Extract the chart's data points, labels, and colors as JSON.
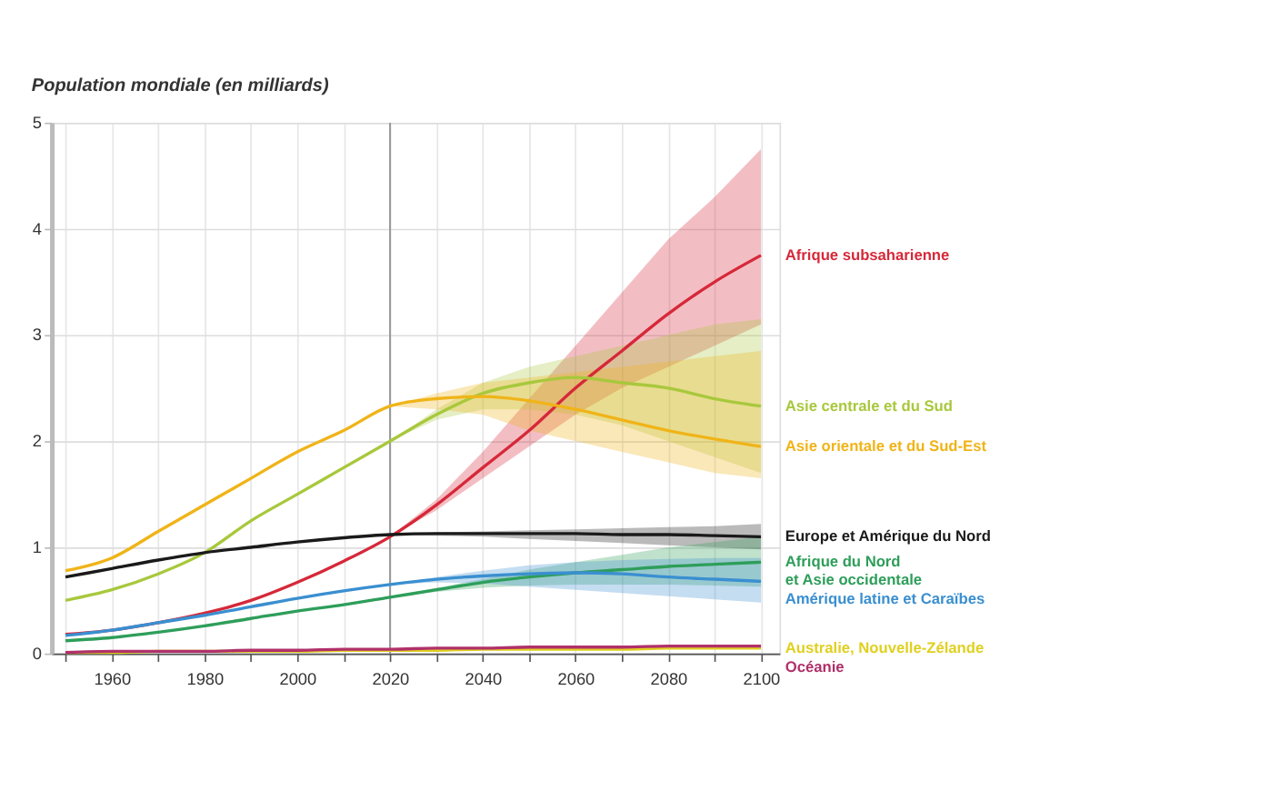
{
  "chart_data": {
    "type": "line",
    "title": "Population mondiale (en milliards)",
    "x": [
      1950,
      1960,
      1970,
      1980,
      1990,
      2000,
      2010,
      2020,
      2030,
      2040,
      2050,
      2060,
      2070,
      2080,
      2090,
      2100
    ],
    "xlim": [
      1947,
      2104
    ],
    "xticks": [
      {
        "value": 1950,
        "label": null
      },
      1960,
      {
        "value": 1970,
        "label": null
      },
      1980,
      {
        "value": 1990,
        "label": null
      },
      2000,
      {
        "value": 2010,
        "label": null
      },
      2020,
      {
        "value": 2030,
        "label": null
      },
      2040,
      {
        "value": 2050,
        "label": null
      },
      2060,
      {
        "value": 2070,
        "label": null
      },
      2080,
      {
        "value": 2090,
        "label": null
      },
      2100
    ],
    "ylim": [
      0,
      5
    ],
    "yticks": [
      0,
      1,
      2,
      3,
      4,
      5
    ],
    "grid": true,
    "legend": false,
    "ref_lines": [
      {
        "axis": "x",
        "value": 2020,
        "color": "#999999"
      }
    ],
    "series": [
      {
        "name": "Afrique subsaharienne",
        "color": "#d62839",
        "values": [
          0.18,
          0.22,
          0.29,
          0.38,
          0.5,
          0.67,
          0.87,
          1.1,
          1.4,
          1.75,
          2.1,
          2.5,
          2.85,
          3.2,
          3.5,
          3.75
        ],
        "lower": [
          null,
          null,
          null,
          null,
          null,
          null,
          null,
          1.1,
          1.35,
          1.65,
          1.95,
          2.25,
          2.5,
          2.7,
          2.9,
          3.1
        ],
        "upper": [
          null,
          null,
          null,
          null,
          null,
          null,
          null,
          1.1,
          1.45,
          1.9,
          2.4,
          2.9,
          3.4,
          3.9,
          4.3,
          4.75
        ]
      },
      {
        "name": "Asie centrale et du Sud",
        "color": "#a8c83c",
        "values": [
          0.5,
          0.6,
          0.75,
          0.95,
          1.25,
          1.5,
          1.75,
          2.0,
          2.25,
          2.45,
          2.55,
          2.6,
          2.55,
          2.5,
          2.4,
          2.33
        ],
        "lower": [
          null,
          null,
          null,
          null,
          null,
          null,
          null,
          2.0,
          2.2,
          2.3,
          2.3,
          2.25,
          2.15,
          2.0,
          1.85,
          1.7
        ],
        "upper": [
          null,
          null,
          null,
          null,
          null,
          null,
          null,
          2.0,
          2.3,
          2.55,
          2.7,
          2.8,
          2.9,
          3.0,
          3.1,
          3.15
        ]
      },
      {
        "name": "Asie orientale et du Sud-Est",
        "color": "#f0b418",
        "values": [
          0.78,
          0.9,
          1.15,
          1.4,
          1.65,
          1.9,
          2.1,
          2.33,
          2.4,
          2.42,
          2.38,
          2.3,
          2.2,
          2.1,
          2.02,
          1.95
        ],
        "lower": [
          null,
          null,
          null,
          null,
          null,
          null,
          null,
          2.33,
          2.3,
          2.25,
          2.1,
          2.0,
          1.9,
          1.8,
          1.7,
          1.65
        ],
        "upper": [
          null,
          null,
          null,
          null,
          null,
          null,
          null,
          2.33,
          2.45,
          2.55,
          2.6,
          2.65,
          2.7,
          2.75,
          2.8,
          2.85
        ]
      },
      {
        "name": "Europe et Amérique du Nord",
        "color": "#1a1a1a",
        "values": [
          0.72,
          0.8,
          0.88,
          0.95,
          1.0,
          1.05,
          1.09,
          1.12,
          1.13,
          1.13,
          1.13,
          1.13,
          1.12,
          1.12,
          1.11,
          1.1
        ],
        "lower": [
          null,
          null,
          null,
          null,
          null,
          null,
          null,
          1.12,
          1.11,
          1.1,
          1.08,
          1.06,
          1.04,
          1.02,
          1.0,
          0.98
        ],
        "upper": [
          null,
          null,
          null,
          null,
          null,
          null,
          null,
          1.12,
          1.14,
          1.15,
          1.16,
          1.17,
          1.18,
          1.19,
          1.2,
          1.22
        ]
      },
      {
        "name": "Afrique du Nord\net Asie occidentale",
        "color": "#2e9e5a",
        "values": [
          0.12,
          0.15,
          0.2,
          0.26,
          0.33,
          0.4,
          0.46,
          0.53,
          0.6,
          0.67,
          0.72,
          0.76,
          0.79,
          0.82,
          0.84,
          0.86
        ],
        "lower": [
          null,
          null,
          null,
          null,
          null,
          null,
          null,
          0.53,
          0.58,
          0.62,
          0.64,
          0.65,
          0.65,
          0.65,
          0.64,
          0.63
        ],
        "upper": [
          null,
          null,
          null,
          null,
          null,
          null,
          null,
          0.53,
          0.62,
          0.7,
          0.79,
          0.86,
          0.93,
          1.0,
          1.05,
          1.1
        ]
      },
      {
        "name": "Amérique latine et Caraïbes",
        "color": "#3a8fd0",
        "values": [
          0.17,
          0.22,
          0.29,
          0.36,
          0.44,
          0.52,
          0.59,
          0.65,
          0.7,
          0.73,
          0.75,
          0.76,
          0.75,
          0.72,
          0.7,
          0.68
        ],
        "lower": [
          null,
          null,
          null,
          null,
          null,
          null,
          null,
          0.65,
          0.67,
          0.66,
          0.63,
          0.6,
          0.57,
          0.54,
          0.51,
          0.48
        ],
        "upper": [
          null,
          null,
          null,
          null,
          null,
          null,
          null,
          0.65,
          0.72,
          0.78,
          0.83,
          0.86,
          0.88,
          0.89,
          0.9,
          0.9
        ]
      },
      {
        "name": "Australie, Nouvelle-Zélande",
        "color": "#e0d020",
        "values": [
          0.01,
          0.01,
          0.02,
          0.02,
          0.02,
          0.02,
          0.03,
          0.03,
          0.03,
          0.04,
          0.04,
          0.04,
          0.04,
          0.05,
          0.05,
          0.05
        ]
      },
      {
        "name": "Océanie",
        "color": "#b0306a",
        "values": [
          0.01,
          0.02,
          0.02,
          0.02,
          0.03,
          0.03,
          0.04,
          0.04,
          0.05,
          0.05,
          0.06,
          0.06,
          0.06,
          0.07,
          0.07,
          0.07
        ]
      }
    ]
  }
}
